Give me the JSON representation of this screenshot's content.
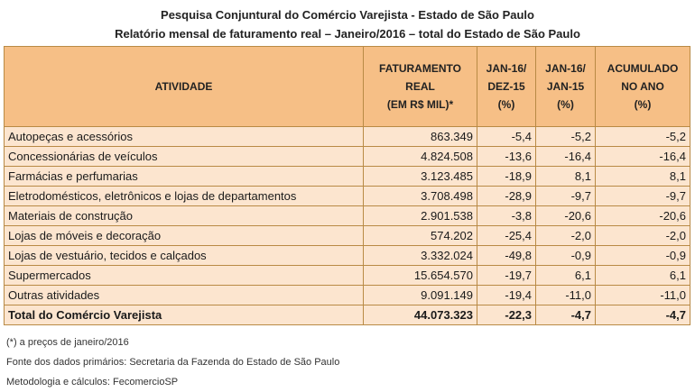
{
  "title_line1": "Pesquisa Conjuntural do Comércio Varejista - Estado de São Paulo",
  "title_line2": "Relatório mensal de faturamento real – Janeiro/2016 – total do Estado de São Paulo",
  "table": {
    "headers": {
      "activity": "ATIVIDADE",
      "revenue": [
        "FATURAMENTO",
        "REAL",
        "(EM R$ MIL)*"
      ],
      "jan_dec": [
        "JAN-16/",
        "DEZ-15",
        "(%)"
      ],
      "jan_jan": [
        "JAN-16/",
        "JAN-15",
        "(%)"
      ],
      "accum": [
        "ACUMULADO",
        "NO ANO",
        "(%)"
      ]
    },
    "rows": [
      {
        "activity": "Autopeças e acessórios",
        "revenue": "863.349",
        "jan_dec": "-5,4",
        "jan_jan": "-5,2",
        "accum": "-5,2"
      },
      {
        "activity": "Concessionárias de veículos",
        "revenue": "4.824.508",
        "jan_dec": "-13,6",
        "jan_jan": "-16,4",
        "accum": "-16,4"
      },
      {
        "activity": "Farmácias e perfumarias",
        "revenue": "3.123.485",
        "jan_dec": "-18,9",
        "jan_jan": "8,1",
        "accum": "8,1"
      },
      {
        "activity": "Eletrodomésticos, eletrônicos e lojas de departamentos",
        "revenue": "3.708.498",
        "jan_dec": "-28,9",
        "jan_jan": "-9,7",
        "accum": "-9,7"
      },
      {
        "activity": "Materiais de construção",
        "revenue": "2.901.538",
        "jan_dec": "-3,8",
        "jan_jan": "-20,6",
        "accum": "-20,6"
      },
      {
        "activity": "Lojas de móveis e decoração",
        "revenue": "574.202",
        "jan_dec": "-25,4",
        "jan_jan": "-2,0",
        "accum": "-2,0"
      },
      {
        "activity": "Lojas de vestuário, tecidos e calçados",
        "revenue": "3.332.024",
        "jan_dec": "-49,8",
        "jan_jan": "-0,9",
        "accum": "-0,9"
      },
      {
        "activity": "Supermercados",
        "revenue": "15.654.570",
        "jan_dec": "-19,7",
        "jan_jan": "6,1",
        "accum": "6,1"
      },
      {
        "activity": "Outras atividades",
        "revenue": "9.091.149",
        "jan_dec": "-19,4",
        "jan_jan": "-11,0",
        "accum": "-11,0"
      }
    ],
    "total": {
      "activity": "Total do Comércio Varejista",
      "revenue": "44.073.323",
      "jan_dec": "-22,3",
      "jan_jan": "-4,7",
      "accum": "-4,7"
    }
  },
  "footnotes": [
    "(*) a preços de janeiro/2016",
    "Fonte dos dados primários: Secretaria da Fazenda do Estado de São Paulo",
    "Metodologia e cálculos: FecomercioSP"
  ],
  "colors": {
    "header_bg": "#f6bf86",
    "row_bg": "#fce5cf",
    "border": "#b98a45"
  }
}
